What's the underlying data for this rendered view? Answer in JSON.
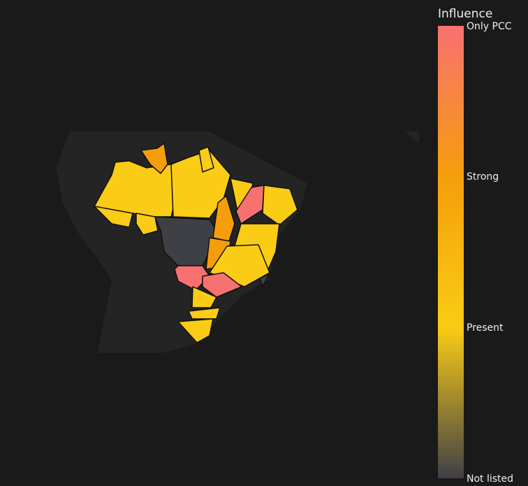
{
  "legend": {
    "title": "Influence",
    "ticks": [
      "Only PCC",
      "Strong",
      "Present",
      "Not listed"
    ]
  }
}
